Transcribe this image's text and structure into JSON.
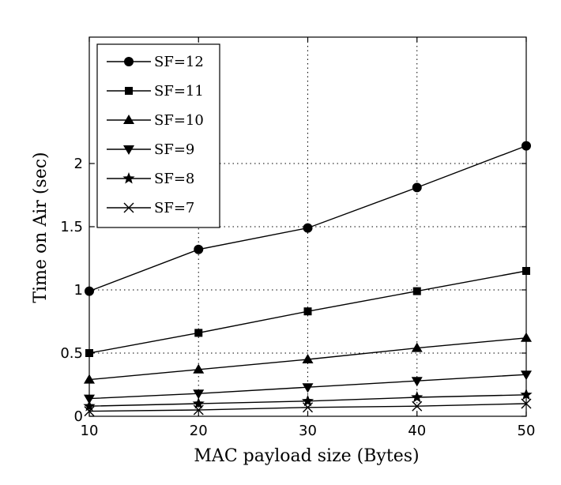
{
  "chart_data": {
    "type": "line",
    "xlabel": "MAC payload size (Bytes)",
    "ylabel": "Time on Air (sec)",
    "x": [
      10,
      20,
      30,
      40,
      50
    ],
    "xlim": [
      10,
      50
    ],
    "ylim": [
      0,
      3
    ],
    "xticks": [
      10,
      20,
      30,
      40,
      50
    ],
    "yticks": [
      0,
      0.5,
      1,
      1.5,
      2
    ],
    "ytick_labels": [
      "0",
      "0.5",
      "1",
      "1.5",
      "2"
    ],
    "grid": true,
    "legend_position": "top-left",
    "line_color": "#000000",
    "series": [
      {
        "name": "SF=12",
        "marker": "circle",
        "values": [
          0.99,
          1.32,
          1.49,
          1.81,
          2.14
        ]
      },
      {
        "name": "SF=11",
        "marker": "square",
        "values": [
          0.5,
          0.66,
          0.83,
          0.99,
          1.15
        ]
      },
      {
        "name": "SF=10",
        "marker": "triangle-up",
        "values": [
          0.29,
          0.37,
          0.45,
          0.54,
          0.62
        ]
      },
      {
        "name": "SF=9",
        "marker": "triangle-down",
        "values": [
          0.14,
          0.18,
          0.23,
          0.28,
          0.33
        ]
      },
      {
        "name": "SF=8",
        "marker": "star",
        "values": [
          0.08,
          0.1,
          0.12,
          0.15,
          0.17
        ]
      },
      {
        "name": "SF=7",
        "marker": "x",
        "values": [
          0.04,
          0.05,
          0.07,
          0.08,
          0.1
        ]
      }
    ]
  }
}
